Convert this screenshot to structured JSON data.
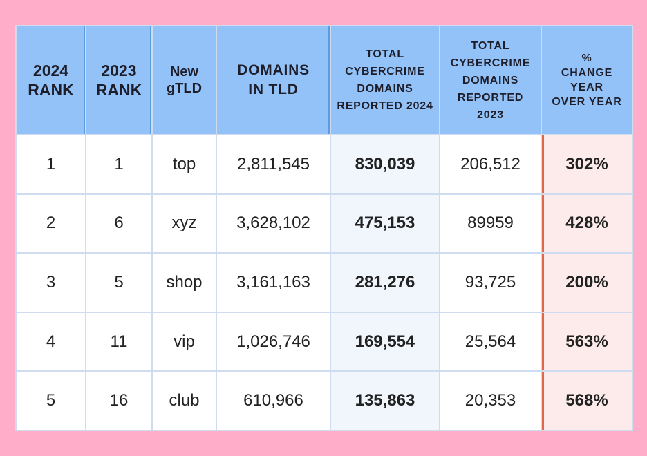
{
  "chart_data": {
    "type": "table",
    "columns": [
      [
        "2024",
        "RANK"
      ],
      [
        "2023",
        "RANK"
      ],
      [
        "New",
        "gTLD"
      ],
      [
        "DOMAINS",
        "IN TLD"
      ],
      [
        "TOTAL",
        "CYBERCRIME",
        "DOMAINS",
        "REPORTED 2024"
      ],
      [
        "TOTAL",
        "CYBERCRIME",
        "DOMAINS",
        "REPORTED",
        "2023"
      ],
      [
        "%",
        "CHANGE",
        "YEAR",
        "OVER YEAR"
      ]
    ],
    "rows": [
      [
        "1",
        "1",
        "top",
        "2,811,545",
        "830,039",
        "206,512",
        "302%"
      ],
      [
        "2",
        "6",
        "xyz",
        "3,628,102",
        "475,153",
        "89959",
        "428%"
      ],
      [
        "3",
        "5",
        "shop",
        "3,161,163",
        "281,276",
        "93,725",
        "200%"
      ],
      [
        "4",
        "11",
        "vip",
        "1,026,746",
        "169,554",
        "25,564",
        "563%"
      ],
      [
        "5",
        "16",
        "club",
        "610,966",
        "135,863",
        "20,353",
        "568%"
      ]
    ]
  },
  "colors": {
    "background": "#ffadc8",
    "header": "#93c2f8",
    "highlight_column": "#f1f6fd",
    "percent_column": "#fcebea",
    "percent_border": "#e0674a"
  }
}
